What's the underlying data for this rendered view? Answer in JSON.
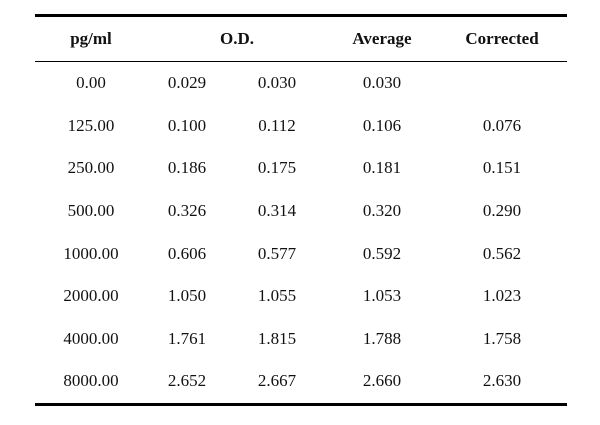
{
  "table": {
    "headers": {
      "pg_ml": "pg/ml",
      "od": "O.D.",
      "average": "Average",
      "corrected": "Corrected"
    },
    "rows": [
      {
        "pg": "0.00",
        "od1": "0.029",
        "od2": "0.030",
        "avg": "0.030",
        "corrected": ""
      },
      {
        "pg": "125.00",
        "od1": "0.100",
        "od2": "0.112",
        "avg": "0.106",
        "corrected": "0.076"
      },
      {
        "pg": "250.00",
        "od1": "0.186",
        "od2": "0.175",
        "avg": "0.181",
        "corrected": "0.151"
      },
      {
        "pg": "500.00",
        "od1": "0.326",
        "od2": "0.314",
        "avg": "0.320",
        "corrected": "0.290"
      },
      {
        "pg": "1000.00",
        "od1": "0.606",
        "od2": "0.577",
        "avg": "0.592",
        "corrected": "0.562"
      },
      {
        "pg": "2000.00",
        "od1": "1.050",
        "od2": "1.055",
        "avg": "1.053",
        "corrected": "1.023"
      },
      {
        "pg": "4000.00",
        "od1": "1.761",
        "od2": "1.815",
        "avg": "1.788",
        "corrected": "1.758"
      },
      {
        "pg": "8000.00",
        "od1": "2.652",
        "od2": "2.667",
        "avg": "2.660",
        "corrected": "2.630"
      }
    ]
  }
}
